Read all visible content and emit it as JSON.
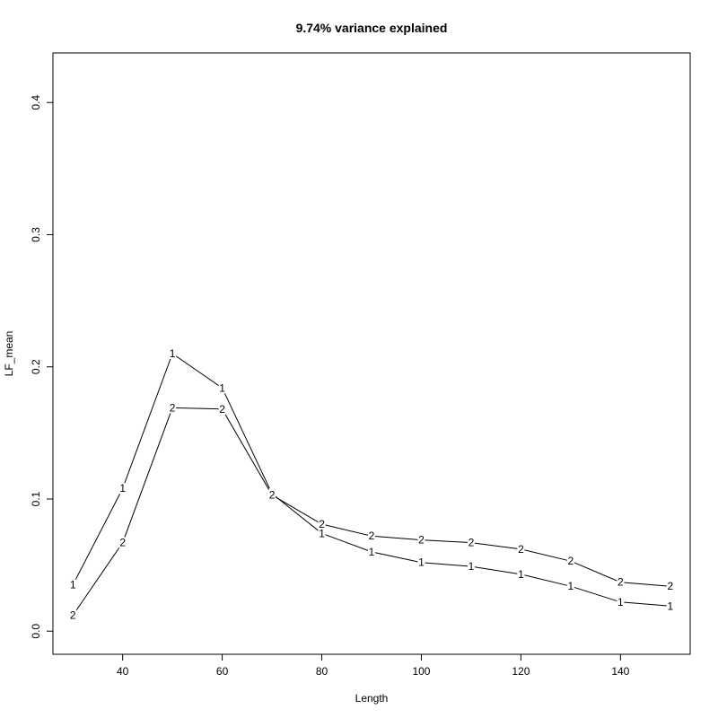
{
  "chart_data": {
    "type": "line",
    "title": "9.74% variance explained",
    "xlabel": "Length",
    "ylabel": "LF_mean",
    "xlim": [
      26,
      154
    ],
    "ylim": [
      -0.0175,
      0.4375
    ],
    "x_ticks": [
      40,
      60,
      80,
      100,
      120,
      140
    ],
    "y_ticks": [
      0.0,
      0.1,
      0.2,
      0.3,
      0.4
    ],
    "y_tick_labels": [
      "0.0",
      "0.1",
      "0.2",
      "0.3",
      "0.4"
    ],
    "grid": false,
    "x": [
      30,
      40,
      50,
      60,
      70,
      80,
      90,
      100,
      110,
      120,
      130,
      140,
      150
    ],
    "series": [
      {
        "marker": "1",
        "values": [
          0.035,
          0.108,
          0.21,
          0.184,
          0.104,
          0.074,
          0.06,
          0.052,
          0.049,
          0.043,
          0.034,
          0.022,
          0.019
        ]
      },
      {
        "marker": "2",
        "values": [
          0.012,
          0.067,
          0.169,
          0.168,
          0.103,
          0.081,
          0.072,
          0.069,
          0.067,
          0.062,
          0.053,
          0.037,
          0.034
        ]
      }
    ]
  }
}
